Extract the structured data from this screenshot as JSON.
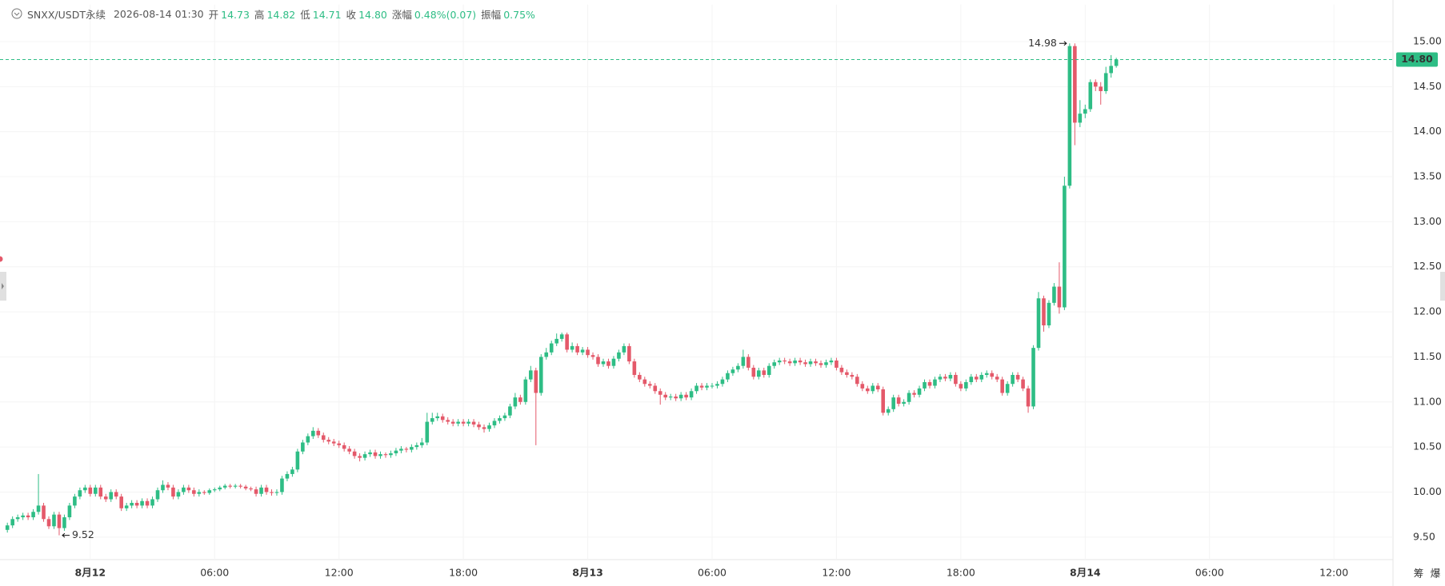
{
  "header": {
    "symbol": "SNXX/USDT永续",
    "time": "2026-08-14 01:30",
    "fields": [
      {
        "label": "开",
        "value": "14.73"
      },
      {
        "label": "高",
        "value": "14.82"
      },
      {
        "label": "低",
        "value": "14.71"
      },
      {
        "label": "收",
        "value": "14.80"
      },
      {
        "label": "涨幅",
        "value": "0.48%(0.07)"
      },
      {
        "label": "振幅",
        "value": "0.75%"
      }
    ]
  },
  "chart_data": {
    "type": "candlestick",
    "up_color": "#2ebd85",
    "down_color": "#e4596a",
    "ohlc": [
      [
        9.58,
        9.66,
        9.55,
        9.63
      ],
      [
        9.63,
        9.73,
        9.6,
        9.7
      ],
      [
        9.7,
        9.75,
        9.67,
        9.72
      ],
      [
        9.72,
        9.77,
        9.69,
        9.74
      ],
      [
        9.74,
        9.77,
        9.69,
        9.72
      ],
      [
        9.72,
        9.81,
        9.69,
        9.78
      ],
      [
        9.78,
        10.2,
        9.75,
        9.85
      ],
      [
        9.85,
        9.88,
        9.67,
        9.7
      ],
      [
        9.7,
        9.73,
        9.59,
        9.62
      ],
      [
        9.62,
        9.78,
        9.59,
        9.75
      ],
      [
        9.75,
        9.78,
        9.52,
        9.6
      ],
      [
        9.6,
        9.75,
        9.57,
        9.72
      ],
      [
        9.72,
        9.88,
        9.69,
        9.85
      ],
      [
        9.85,
        9.98,
        9.82,
        9.95
      ],
      [
        9.95,
        10.05,
        9.92,
        10.02
      ],
      [
        10.02,
        10.08,
        9.99,
        10.05
      ],
      [
        10.05,
        10.08,
        9.95,
        9.98
      ],
      [
        9.98,
        10.08,
        9.95,
        10.05
      ],
      [
        10.05,
        10.08,
        9.92,
        9.95
      ],
      [
        9.95,
        9.98,
        9.89,
        9.92
      ],
      [
        9.92,
        10.03,
        9.89,
        10.0
      ],
      [
        10.0,
        10.03,
        9.92,
        9.95
      ],
      [
        9.95,
        9.98,
        9.79,
        9.82
      ],
      [
        9.82,
        9.88,
        9.79,
        9.85
      ],
      [
        9.85,
        9.91,
        9.82,
        9.88
      ],
      [
        9.88,
        9.91,
        9.82,
        9.85
      ],
      [
        9.85,
        9.93,
        9.82,
        9.9
      ],
      [
        9.9,
        9.93,
        9.82,
        9.85
      ],
      [
        9.85,
        9.95,
        9.82,
        9.92
      ],
      [
        9.92,
        10.05,
        9.89,
        10.02
      ],
      [
        10.02,
        10.13,
        9.99,
        10.08
      ],
      [
        10.08,
        10.11,
        10.02,
        10.05
      ],
      [
        10.05,
        10.08,
        9.92,
        9.95
      ],
      [
        9.95,
        10.03,
        9.92,
        10.0
      ],
      [
        10.0,
        10.08,
        9.97,
        10.05
      ],
      [
        10.05,
        10.08,
        9.99,
        10.02
      ],
      [
        10.02,
        10.05,
        9.95,
        9.98
      ],
      [
        9.98,
        10.03,
        9.95,
        10.0
      ],
      [
        10.0,
        10.02,
        9.97,
        9.99
      ],
      [
        9.99,
        10.04,
        9.97,
        10.02
      ],
      [
        10.02,
        10.05,
        10.0,
        10.03
      ],
      [
        10.03,
        10.07,
        10.01,
        10.05
      ],
      [
        10.05,
        10.09,
        10.03,
        10.07
      ],
      [
        10.07,
        10.09,
        10.04,
        10.06
      ],
      [
        10.06,
        10.09,
        10.04,
        10.07
      ],
      [
        10.07,
        10.09,
        10.04,
        10.06
      ],
      [
        10.06,
        10.08,
        10.02,
        10.04
      ],
      [
        10.04,
        10.06,
        10.01,
        10.03
      ],
      [
        10.03,
        10.06,
        9.95,
        9.98
      ],
      [
        9.98,
        10.08,
        9.95,
        10.05
      ],
      [
        10.05,
        10.08,
        9.97,
        10.0
      ],
      [
        10.0,
        10.03,
        9.96,
        9.99
      ],
      [
        9.99,
        10.03,
        9.96,
        10.0
      ],
      [
        10.0,
        10.18,
        9.97,
        10.15
      ],
      [
        10.15,
        10.23,
        10.12,
        10.2
      ],
      [
        10.2,
        10.28,
        10.17,
        10.25
      ],
      [
        10.25,
        10.48,
        10.22,
        10.45
      ],
      [
        10.45,
        10.58,
        10.42,
        10.55
      ],
      [
        10.55,
        10.65,
        10.52,
        10.62
      ],
      [
        10.62,
        10.72,
        10.59,
        10.68
      ],
      [
        10.68,
        10.71,
        10.6,
        10.63
      ],
      [
        10.63,
        10.66,
        10.55,
        10.58
      ],
      [
        10.58,
        10.61,
        10.53,
        10.56
      ],
      [
        10.56,
        10.59,
        10.51,
        10.54
      ],
      [
        10.54,
        10.57,
        10.49,
        10.52
      ],
      [
        10.52,
        10.55,
        10.45,
        10.48
      ],
      [
        10.48,
        10.51,
        10.42,
        10.45
      ],
      [
        10.45,
        10.48,
        10.37,
        10.4
      ],
      [
        10.4,
        10.43,
        10.34,
        10.38
      ],
      [
        10.38,
        10.45,
        10.35,
        10.42
      ],
      [
        10.42,
        10.47,
        10.39,
        10.44
      ],
      [
        10.44,
        10.47,
        10.37,
        10.4
      ],
      [
        10.4,
        10.45,
        10.37,
        10.42
      ],
      [
        10.42,
        10.44,
        10.38,
        10.41
      ],
      [
        10.41,
        10.46,
        10.38,
        10.43
      ],
      [
        10.43,
        10.49,
        10.4,
        10.46
      ],
      [
        10.46,
        10.51,
        10.43,
        10.48
      ],
      [
        10.48,
        10.5,
        10.44,
        10.47
      ],
      [
        10.47,
        10.53,
        10.44,
        10.5
      ],
      [
        10.5,
        10.55,
        10.47,
        10.52
      ],
      [
        10.52,
        10.6,
        10.49,
        10.55
      ],
      [
        10.55,
        10.88,
        10.52,
        10.78
      ],
      [
        10.78,
        10.88,
        10.75,
        10.82
      ],
      [
        10.82,
        10.88,
        10.79,
        10.84
      ],
      [
        10.84,
        10.87,
        10.77,
        10.8
      ],
      [
        10.8,
        10.83,
        10.75,
        10.78
      ],
      [
        10.78,
        10.81,
        10.73,
        10.76
      ],
      [
        10.76,
        10.81,
        10.73,
        10.78
      ],
      [
        10.78,
        10.81,
        10.73,
        10.76
      ],
      [
        10.76,
        10.81,
        10.73,
        10.78
      ],
      [
        10.78,
        10.81,
        10.72,
        10.75
      ],
      [
        10.75,
        10.78,
        10.69,
        10.72
      ],
      [
        10.72,
        10.75,
        10.66,
        10.7
      ],
      [
        10.7,
        10.77,
        10.67,
        10.74
      ],
      [
        10.74,
        10.82,
        10.71,
        10.79
      ],
      [
        10.79,
        10.85,
        10.76,
        10.82
      ],
      [
        10.82,
        10.88,
        10.79,
        10.85
      ],
      [
        10.85,
        10.98,
        10.82,
        10.95
      ],
      [
        10.95,
        11.1,
        10.92,
        11.05
      ],
      [
        11.05,
        11.08,
        10.97,
        11.0
      ],
      [
        11.0,
        11.28,
        10.97,
        11.25
      ],
      [
        11.25,
        11.4,
        11.22,
        11.35
      ],
      [
        11.35,
        11.38,
        10.52,
        11.1
      ],
      [
        11.1,
        11.53,
        11.07,
        11.5
      ],
      [
        11.5,
        11.6,
        11.47,
        11.55
      ],
      [
        11.55,
        11.68,
        11.52,
        11.65
      ],
      [
        11.65,
        11.76,
        11.62,
        11.7
      ],
      [
        11.7,
        11.77,
        11.67,
        11.75
      ],
      [
        11.75,
        11.77,
        11.55,
        11.58
      ],
      [
        11.58,
        11.66,
        11.55,
        11.62
      ],
      [
        11.62,
        11.65,
        11.52,
        11.55
      ],
      [
        11.55,
        11.61,
        11.52,
        11.58
      ],
      [
        11.58,
        11.61,
        11.49,
        11.52
      ],
      [
        11.52,
        11.55,
        11.47,
        11.5
      ],
      [
        11.5,
        11.53,
        11.39,
        11.42
      ],
      [
        11.42,
        11.48,
        11.39,
        11.45
      ],
      [
        11.45,
        11.48,
        11.37,
        11.4
      ],
      [
        11.4,
        11.51,
        11.37,
        11.48
      ],
      [
        11.48,
        11.58,
        11.45,
        11.55
      ],
      [
        11.55,
        11.65,
        11.52,
        11.62
      ],
      [
        11.62,
        11.65,
        11.42,
        11.45
      ],
      [
        11.45,
        11.48,
        11.27,
        11.3
      ],
      [
        11.3,
        11.33,
        11.22,
        11.25
      ],
      [
        11.25,
        11.28,
        11.17,
        11.2
      ],
      [
        11.2,
        11.23,
        11.15,
        11.18
      ],
      [
        11.18,
        11.21,
        11.09,
        11.12
      ],
      [
        11.12,
        11.15,
        10.97,
        11.08
      ],
      [
        11.08,
        11.11,
        11.02,
        11.05
      ],
      [
        11.05,
        11.09,
        11.02,
        11.06
      ],
      [
        11.06,
        11.09,
        11.01,
        11.04
      ],
      [
        11.04,
        11.11,
        11.01,
        11.08
      ],
      [
        11.08,
        11.11,
        11.02,
        11.05
      ],
      [
        11.05,
        11.15,
        11.02,
        11.12
      ],
      [
        11.12,
        11.21,
        11.09,
        11.18
      ],
      [
        11.18,
        11.21,
        11.13,
        11.16
      ],
      [
        11.16,
        11.21,
        11.13,
        11.18
      ],
      [
        11.18,
        11.21,
        11.15,
        11.18
      ],
      [
        11.18,
        11.23,
        11.15,
        11.2
      ],
      [
        11.2,
        11.28,
        11.17,
        11.25
      ],
      [
        11.25,
        11.35,
        11.22,
        11.32
      ],
      [
        11.32,
        11.39,
        11.29,
        11.36
      ],
      [
        11.36,
        11.43,
        11.33,
        11.4
      ],
      [
        11.4,
        11.58,
        11.37,
        11.5
      ],
      [
        11.5,
        11.53,
        11.35,
        11.38
      ],
      [
        11.38,
        11.41,
        11.25,
        11.28
      ],
      [
        11.28,
        11.38,
        11.25,
        11.35
      ],
      [
        11.35,
        11.38,
        11.27,
        11.3
      ],
      [
        11.3,
        11.43,
        11.27,
        11.4
      ],
      [
        11.4,
        11.47,
        11.37,
        11.44
      ],
      [
        11.44,
        11.49,
        11.41,
        11.46
      ],
      [
        11.46,
        11.49,
        11.42,
        11.45
      ],
      [
        11.45,
        11.48,
        11.4,
        11.43
      ],
      [
        11.43,
        11.49,
        11.4,
        11.46
      ],
      [
        11.46,
        11.49,
        11.41,
        11.44
      ],
      [
        11.44,
        11.47,
        11.39,
        11.42
      ],
      [
        11.42,
        11.48,
        11.39,
        11.45
      ],
      [
        11.45,
        11.48,
        11.4,
        11.43
      ],
      [
        11.43,
        11.46,
        11.38,
        11.41
      ],
      [
        11.41,
        11.47,
        11.38,
        11.44
      ],
      [
        11.44,
        11.49,
        11.41,
        11.46
      ],
      [
        11.46,
        11.49,
        11.35,
        11.38
      ],
      [
        11.38,
        11.41,
        11.3,
        11.33
      ],
      [
        11.33,
        11.36,
        11.27,
        11.3
      ],
      [
        11.3,
        11.33,
        11.25,
        11.28
      ],
      [
        11.28,
        11.31,
        11.17,
        11.2
      ],
      [
        11.2,
        11.23,
        11.12,
        11.15
      ],
      [
        11.15,
        11.18,
        11.09,
        11.12
      ],
      [
        11.12,
        11.21,
        11.09,
        11.18
      ],
      [
        11.18,
        11.21,
        11.11,
        11.14
      ],
      [
        11.14,
        11.17,
        10.85,
        10.88
      ],
      [
        10.88,
        10.95,
        10.85,
        10.92
      ],
      [
        10.92,
        11.08,
        10.89,
        11.05
      ],
      [
        11.05,
        11.08,
        10.95,
        10.98
      ],
      [
        10.98,
        11.03,
        10.95,
        11.0
      ],
      [
        11.0,
        11.13,
        10.97,
        11.1
      ],
      [
        11.1,
        11.13,
        11.05,
        11.08
      ],
      [
        11.08,
        11.18,
        11.05,
        11.15
      ],
      [
        11.15,
        11.25,
        11.12,
        11.22
      ],
      [
        11.22,
        11.25,
        11.15,
        11.18
      ],
      [
        11.18,
        11.28,
        11.15,
        11.25
      ],
      [
        11.25,
        11.31,
        11.22,
        11.28
      ],
      [
        11.28,
        11.31,
        11.23,
        11.26
      ],
      [
        11.26,
        11.33,
        11.23,
        11.3
      ],
      [
        11.3,
        11.33,
        11.17,
        11.2
      ],
      [
        11.2,
        11.23,
        11.12,
        11.15
      ],
      [
        11.15,
        11.25,
        11.12,
        11.22
      ],
      [
        11.22,
        11.31,
        11.19,
        11.28
      ],
      [
        11.28,
        11.31,
        11.22,
        11.25
      ],
      [
        11.25,
        11.33,
        11.22,
        11.3
      ],
      [
        11.3,
        11.35,
        11.27,
        11.32
      ],
      [
        11.32,
        11.35,
        11.25,
        11.28
      ],
      [
        11.28,
        11.31,
        11.22,
        11.25
      ],
      [
        11.25,
        11.28,
        11.07,
        11.1
      ],
      [
        11.1,
        11.23,
        11.07,
        11.2
      ],
      [
        11.2,
        11.33,
        11.17,
        11.3
      ],
      [
        11.3,
        11.33,
        11.22,
        11.25
      ],
      [
        11.25,
        11.28,
        11.12,
        11.15
      ],
      [
        11.15,
        11.18,
        10.88,
        10.95
      ],
      [
        10.95,
        11.63,
        10.92,
        11.6
      ],
      [
        11.6,
        12.22,
        11.57,
        12.15
      ],
      [
        12.15,
        12.18,
        11.78,
        11.85
      ],
      [
        11.85,
        12.13,
        11.82,
        12.1
      ],
      [
        12.1,
        12.32,
        12.07,
        12.28
      ],
      [
        12.28,
        12.55,
        11.98,
        12.05
      ],
      [
        12.05,
        13.5,
        12.02,
        13.4
      ],
      [
        13.4,
        14.98,
        13.37,
        14.95
      ],
      [
        14.95,
        14.98,
        13.85,
        14.1
      ],
      [
        14.1,
        14.35,
        14.05,
        14.2
      ],
      [
        14.2,
        14.3,
        14.15,
        14.25
      ],
      [
        14.25,
        14.58,
        14.22,
        14.55
      ],
      [
        14.55,
        14.58,
        14.45,
        14.5
      ],
      [
        14.5,
        14.55,
        14.3,
        14.45
      ],
      [
        14.45,
        14.72,
        14.42,
        14.65
      ],
      [
        14.65,
        14.85,
        14.6,
        14.73
      ],
      [
        14.73,
        14.82,
        14.71,
        14.8
      ]
    ],
    "xlim": [
      -1.42,
      267.4
    ],
    "day_xticks": [
      {
        "value": 16,
        "label": "8月12"
      },
      {
        "value": 112,
        "label": "8月13"
      },
      {
        "value": 208,
        "label": "8月14"
      }
    ],
    "time_xticks": [
      {
        "value": 40,
        "label": "06:00"
      },
      {
        "value": 64,
        "label": "12:00"
      },
      {
        "value": 88,
        "label": "18:00"
      },
      {
        "value": 136,
        "label": "06:00"
      },
      {
        "value": 160,
        "label": "12:00"
      },
      {
        "value": 184,
        "label": "18:00"
      },
      {
        "value": 232,
        "label": "06:00"
      },
      {
        "value": 256,
        "label": "12:00"
      }
    ],
    "ylim": [
      9.25,
      15.41
    ],
    "yticks": [
      {
        "value": 9.5,
        "label": "9.50"
      },
      {
        "value": 10,
        "label": "10.00"
      },
      {
        "value": 10.5,
        "label": "10.50"
      },
      {
        "value": 11,
        "label": "11.00"
      },
      {
        "value": 11.5,
        "label": "11.50"
      },
      {
        "value": 12,
        "label": "12.00"
      },
      {
        "value": 12.5,
        "label": "12.50"
      },
      {
        "value": 13,
        "label": "13.00"
      },
      {
        "value": 13.5,
        "label": "13.50"
      },
      {
        "value": 14,
        "label": "14.00"
      },
      {
        "value": 14.5,
        "label": "14.50"
      },
      {
        "value": 15,
        "label": "15.00"
      }
    ],
    "grid": true,
    "last_price_label": "14.80"
  },
  "tools": [
    "筹",
    "爆"
  ]
}
